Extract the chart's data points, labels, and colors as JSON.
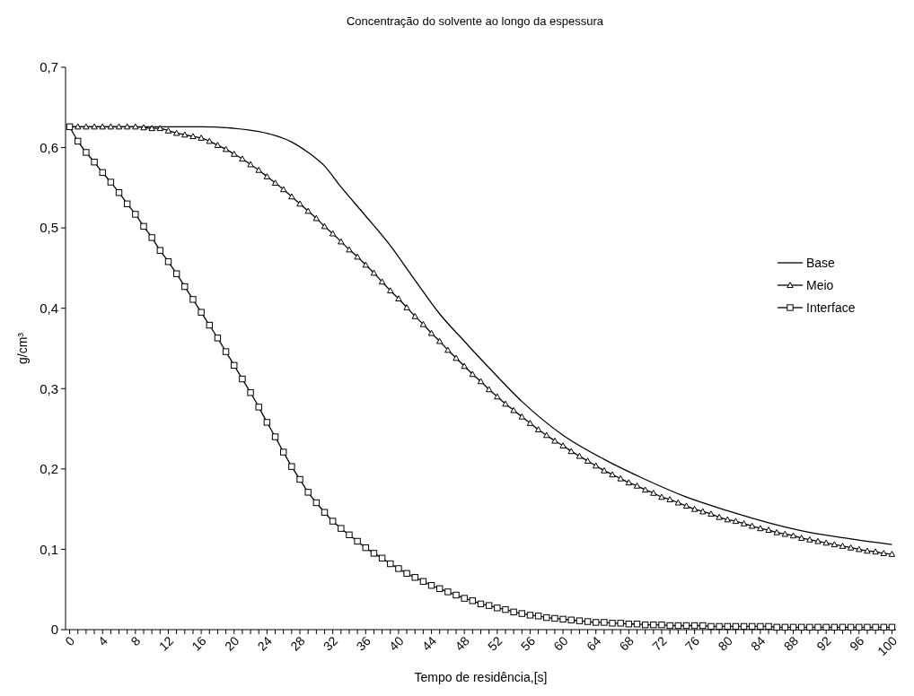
{
  "chart_data": {
    "type": "line",
    "title": "Concentração do solvente ao longo da espessura",
    "xlabel": "Tempo de residência,[s]",
    "ylabel": "g/cm³",
    "xlim": [
      -0.5,
      100.5
    ],
    "ylim": [
      0,
      0.7
    ],
    "xticks": [
      0,
      {
        "value": 1,
        "label": null
      },
      {
        "value": 2,
        "label": null
      },
      {
        "value": 3,
        "label": null
      },
      4,
      {
        "value": 5,
        "label": null
      },
      {
        "value": 6,
        "label": null
      },
      {
        "value": 7,
        "label": null
      },
      8,
      {
        "value": 9,
        "label": null
      },
      {
        "value": 10,
        "label": null
      },
      {
        "value": 11,
        "label": null
      },
      12,
      {
        "value": 13,
        "label": null
      },
      {
        "value": 14,
        "label": null
      },
      {
        "value": 15,
        "label": null
      },
      16,
      {
        "value": 17,
        "label": null
      },
      {
        "value": 18,
        "label": null
      },
      {
        "value": 19,
        "label": null
      },
      20,
      {
        "value": 21,
        "label": null
      },
      {
        "value": 22,
        "label": null
      },
      {
        "value": 23,
        "label": null
      },
      24,
      {
        "value": 25,
        "label": null
      },
      {
        "value": 26,
        "label": null
      },
      {
        "value": 27,
        "label": null
      },
      28,
      {
        "value": 29,
        "label": null
      },
      {
        "value": 30,
        "label": null
      },
      {
        "value": 31,
        "label": null
      },
      32,
      {
        "value": 33,
        "label": null
      },
      {
        "value": 34,
        "label": null
      },
      {
        "value": 35,
        "label": null
      },
      36,
      {
        "value": 37,
        "label": null
      },
      {
        "value": 38,
        "label": null
      },
      {
        "value": 39,
        "label": null
      },
      40,
      {
        "value": 41,
        "label": null
      },
      {
        "value": 42,
        "label": null
      },
      {
        "value": 43,
        "label": null
      },
      44,
      {
        "value": 45,
        "label": null
      },
      {
        "value": 46,
        "label": null
      },
      {
        "value": 47,
        "label": null
      },
      48,
      {
        "value": 49,
        "label": null
      },
      {
        "value": 50,
        "label": null
      },
      {
        "value": 51,
        "label": null
      },
      52,
      {
        "value": 53,
        "label": null
      },
      {
        "value": 54,
        "label": null
      },
      {
        "value": 55,
        "label": null
      },
      56,
      {
        "value": 57,
        "label": null
      },
      {
        "value": 58,
        "label": null
      },
      {
        "value": 59,
        "label": null
      },
      60,
      {
        "value": 61,
        "label": null
      },
      {
        "value": 62,
        "label": null
      },
      {
        "value": 63,
        "label": null
      },
      64,
      {
        "value": 65,
        "label": null
      },
      {
        "value": 66,
        "label": null
      },
      {
        "value": 67,
        "label": null
      },
      68,
      {
        "value": 69,
        "label": null
      },
      {
        "value": 70,
        "label": null
      },
      {
        "value": 71,
        "label": null
      },
      72,
      {
        "value": 73,
        "label": null
      },
      {
        "value": 74,
        "label": null
      },
      {
        "value": 75,
        "label": null
      },
      76,
      {
        "value": 77,
        "label": null
      },
      {
        "value": 78,
        "label": null
      },
      {
        "value": 79,
        "label": null
      },
      80,
      {
        "value": 81,
        "label": null
      },
      {
        "value": 82,
        "label": null
      },
      {
        "value": 83,
        "label": null
      },
      84,
      {
        "value": 85,
        "label": null
      },
      {
        "value": 86,
        "label": null
      },
      {
        "value": 87,
        "label": null
      },
      88,
      {
        "value": 89,
        "label": null
      },
      {
        "value": 90,
        "label": null
      },
      {
        "value": 91,
        "label": null
      },
      92,
      {
        "value": 93,
        "label": null
      },
      {
        "value": 94,
        "label": null
      },
      {
        "value": 95,
        "label": null
      },
      96,
      {
        "value": 97,
        "label": null
      },
      {
        "value": 98,
        "label": null
      },
      {
        "value": 99,
        "label": null
      },
      100
    ],
    "yticks": [
      0,
      {
        "value": 0.1,
        "label": "0,1"
      },
      {
        "value": 0.2,
        "label": "0,2"
      },
      {
        "value": 0.3,
        "label": "0,3"
      },
      {
        "value": 0.4,
        "label": "0,4"
      },
      {
        "value": 0.5,
        "label": "0,5"
      },
      {
        "value": 0.6,
        "label": "0,6"
      },
      {
        "value": 0.7,
        "label": "0,7"
      }
    ],
    "grid": false,
    "legend": "right",
    "line_style": "solid",
    "series": [
      {
        "name": "Base",
        "color": "#000000",
        "marker": "none",
        "x": [
          0,
          10,
          16,
          20,
          23,
          25,
          27,
          29,
          31,
          33,
          36,
          39,
          42,
          45,
          48,
          51,
          55,
          60,
          65,
          70,
          75,
          80,
          85,
          90,
          95,
          100
        ],
        "values": [
          0.626,
          0.626,
          0.626,
          0.624,
          0.62,
          0.615,
          0.607,
          0.594,
          0.577,
          0.551,
          0.515,
          0.478,
          0.435,
          0.393,
          0.359,
          0.326,
          0.284,
          0.242,
          0.212,
          0.187,
          0.165,
          0.148,
          0.133,
          0.121,
          0.113,
          0.106
        ]
      },
      {
        "name": "Meio",
        "color": "#000000",
        "marker": "triangle",
        "x": [
          0,
          1,
          2,
          3,
          4,
          5,
          6,
          7,
          8,
          9,
          10,
          11,
          12,
          13,
          14,
          15,
          16,
          17,
          18,
          19,
          20,
          21,
          22,
          23,
          24,
          25,
          26,
          27,
          28,
          29,
          30,
          31,
          32,
          33,
          34,
          35,
          36,
          37,
          38,
          39,
          40,
          41,
          42,
          43,
          44,
          45,
          46,
          47,
          48,
          49,
          50,
          51,
          52,
          53,
          54,
          55,
          56,
          57,
          58,
          59,
          60,
          61,
          62,
          63,
          64,
          65,
          66,
          67,
          68,
          69,
          70,
          71,
          72,
          73,
          74,
          75,
          76,
          77,
          78,
          79,
          80,
          81,
          82,
          83,
          84,
          85,
          86,
          87,
          88,
          89,
          90,
          91,
          92,
          93,
          94,
          95,
          96,
          97,
          98,
          99,
          100
        ],
        "values": [
          0.626,
          0.626,
          0.626,
          0.626,
          0.626,
          0.626,
          0.626,
          0.626,
          0.626,
          0.625,
          0.624,
          0.624,
          0.621,
          0.618,
          0.616,
          0.614,
          0.612,
          0.608,
          0.603,
          0.598,
          0.592,
          0.586,
          0.579,
          0.572,
          0.564,
          0.556,
          0.548,
          0.539,
          0.53,
          0.521,
          0.512,
          0.502,
          0.493,
          0.483,
          0.473,
          0.464,
          0.454,
          0.444,
          0.433,
          0.422,
          0.412,
          0.401,
          0.39,
          0.38,
          0.369,
          0.359,
          0.348,
          0.338,
          0.328,
          0.318,
          0.309,
          0.299,
          0.29,
          0.281,
          0.273,
          0.265,
          0.257,
          0.249,
          0.242,
          0.235,
          0.229,
          0.222,
          0.216,
          0.21,
          0.204,
          0.198,
          0.193,
          0.188,
          0.183,
          0.179,
          0.174,
          0.17,
          0.165,
          0.162,
          0.158,
          0.154,
          0.15,
          0.147,
          0.144,
          0.14,
          0.137,
          0.135,
          0.132,
          0.129,
          0.126,
          0.124,
          0.121,
          0.119,
          0.117,
          0.114,
          0.112,
          0.11,
          0.108,
          0.106,
          0.104,
          0.102,
          0.1,
          0.098,
          0.097,
          0.095,
          0.094
        ]
      },
      {
        "name": "Interface",
        "color": "#000000",
        "marker": "square",
        "x": [
          0,
          1,
          2,
          3,
          4,
          5,
          6,
          7,
          8,
          9,
          10,
          11,
          12,
          13,
          14,
          15,
          16,
          17,
          18,
          19,
          20,
          21,
          22,
          23,
          24,
          25,
          26,
          27,
          28,
          29,
          30,
          31,
          32,
          33,
          34,
          35,
          36,
          37,
          38,
          39,
          40,
          41,
          42,
          43,
          44,
          45,
          46,
          47,
          48,
          49,
          50,
          51,
          52,
          53,
          54,
          55,
          56,
          57,
          58,
          59,
          60,
          61,
          62,
          63,
          64,
          65,
          66,
          67,
          68,
          69,
          70,
          71,
          72,
          73,
          74,
          75,
          76,
          77,
          78,
          79,
          80,
          81,
          82,
          83,
          84,
          85,
          86,
          87,
          88,
          89,
          90,
          91,
          92,
          93,
          94,
          95,
          96,
          97,
          98,
          99,
          100
        ],
        "values": [
          0.626,
          0.608,
          0.594,
          0.582,
          0.569,
          0.557,
          0.544,
          0.53,
          0.517,
          0.502,
          0.488,
          0.472,
          0.458,
          0.443,
          0.427,
          0.411,
          0.395,
          0.379,
          0.363,
          0.346,
          0.329,
          0.312,
          0.295,
          0.277,
          0.258,
          0.24,
          0.221,
          0.203,
          0.187,
          0.171,
          0.158,
          0.146,
          0.135,
          0.126,
          0.118,
          0.11,
          0.102,
          0.095,
          0.089,
          0.082,
          0.076,
          0.07,
          0.065,
          0.06,
          0.055,
          0.051,
          0.047,
          0.043,
          0.039,
          0.036,
          0.032,
          0.03,
          0.027,
          0.025,
          0.022,
          0.02,
          0.018,
          0.017,
          0.015,
          0.014,
          0.013,
          0.012,
          0.011,
          0.01,
          0.009,
          0.009,
          0.008,
          0.008,
          0.007,
          0.007,
          0.006,
          0.006,
          0.006,
          0.005,
          0.005,
          0.005,
          0.005,
          0.005,
          0.004,
          0.004,
          0.004,
          0.004,
          0.004,
          0.004,
          0.004,
          0.004,
          0.003,
          0.003,
          0.003,
          0.003,
          0.003,
          0.003,
          0.003,
          0.003,
          0.003,
          0.003,
          0.003,
          0.003,
          0.003,
          0.003,
          0.003
        ]
      }
    ]
  }
}
